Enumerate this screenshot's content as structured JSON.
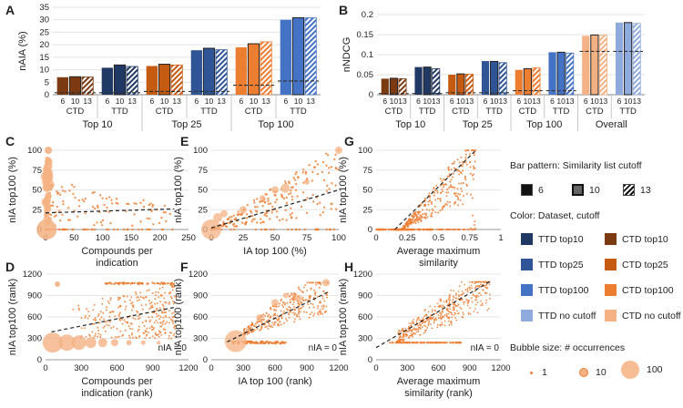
{
  "chart_data": [
    {
      "panel": "A",
      "type": "bar",
      "ylabel": "nAIA (%)",
      "ylim": [
        0,
        35
      ],
      "yticks": [
        0,
        5,
        10,
        15,
        20,
        25,
        30,
        35
      ],
      "subgroup_labels": [
        "6",
        "10",
        "13"
      ],
      "groups": [
        {
          "name": "Top 10",
          "bars": [
            {
              "dataset": "CTD",
              "color": "#7b3a12",
              "values": [
                7.0,
                7.2,
                7.1
              ],
              "baseline": 0.8
            },
            {
              "dataset": "TTD",
              "color": "#1f3864",
              "values": [
                10.8,
                11.9,
                11.3
              ],
              "baseline": 0.8
            }
          ]
        },
        {
          "name": "Top 25",
          "bars": [
            {
              "dataset": "CTD",
              "color": "#c55a11",
              "values": [
                11.5,
                12.2,
                11.9
              ],
              "baseline": 1.3
            },
            {
              "dataset": "TTD",
              "color": "#2f5597",
              "values": [
                17.8,
                18.6,
                18.0
              ],
              "baseline": 1.3
            }
          ]
        },
        {
          "name": "Top 100",
          "bars": [
            {
              "dataset": "CTD",
              "color": "#ed7d31",
              "values": [
                19.0,
                20.4,
                21.2
              ],
              "baseline": 3.8
            },
            {
              "dataset": "TTD",
              "color": "#4472c4",
              "values": [
                30.0,
                30.8,
                30.8
              ],
              "baseline": 5.5
            }
          ]
        }
      ]
    },
    {
      "panel": "B",
      "type": "bar",
      "ylabel": "nNDCG",
      "ylim": [
        0,
        0.2
      ],
      "yticks": [
        "0",
        "0.05",
        "0.1",
        "0.15",
        "0.2"
      ],
      "subgroup_labels": [
        "6",
        "10",
        "13"
      ],
      "groups": [
        {
          "name": "Top 10",
          "bars": [
            {
              "dataset": "CTD",
              "color": "#7b3a12",
              "values": [
                0.04,
                0.041,
                0.04
              ],
              "baseline": 0.003
            },
            {
              "dataset": "TTD",
              "color": "#1f3864",
              "values": [
                0.069,
                0.069,
                0.065
              ],
              "baseline": 0.003
            }
          ]
        },
        {
          "name": "Top 25",
          "bars": [
            {
              "dataset": "CTD",
              "color": "#c55a11",
              "values": [
                0.05,
                0.052,
                0.051
              ],
              "baseline": 0.005
            },
            {
              "dataset": "TTD",
              "color": "#2f5597",
              "values": [
                0.084,
                0.083,
                0.08
              ],
              "baseline": 0.005
            }
          ]
        },
        {
          "name": "Top 100",
          "bars": [
            {
              "dataset": "CTD",
              "color": "#ed7d31",
              "values": [
                0.062,
                0.065,
                0.067
              ],
              "baseline": 0.01
            },
            {
              "dataset": "TTD",
              "color": "#4472c4",
              "values": [
                0.106,
                0.106,
                0.104
              ],
              "baseline": 0.01
            }
          ]
        },
        {
          "name": "Overall",
          "bars": [
            {
              "dataset": "CTD",
              "color": "#f4b183",
              "values": [
                0.147,
                0.149,
                0.149
              ],
              "baseline": 0.108
            },
            {
              "dataset": "TTD",
              "color": "#8faadc",
              "values": [
                0.18,
                0.18,
                0.178
              ],
              "baseline": 0.108
            }
          ]
        }
      ]
    },
    {
      "panel": "C",
      "type": "scatter",
      "xlabel": "Compounds per indication",
      "ylabel": "nIA top100 (%)",
      "xlim": [
        0,
        250
      ],
      "ylim": [
        0,
        100
      ],
      "xticks": [
        0,
        50,
        100,
        150,
        200,
        250
      ],
      "yticks": [
        0,
        25,
        50,
        75,
        100
      ],
      "xtick_labels": [
        "0",
        "50",
        "100",
        "150",
        "200",
        "250"
      ],
      "ytick_labels": [
        "0",
        "25",
        "50",
        "75",
        "100"
      ],
      "trend": [
        [
          0,
          21
        ],
        [
          225,
          26
        ]
      ],
      "note": ""
    },
    {
      "panel": "E",
      "type": "scatter",
      "xlabel": "IA top 100 (%)",
      "ylabel": "nIA top100 (%)",
      "xlim": [
        0,
        100
      ],
      "ylim": [
        0,
        100
      ],
      "xticks": [
        0,
        25,
        50,
        75,
        100
      ],
      "yticks": [
        0,
        25,
        50,
        75,
        100
      ],
      "xtick_labels": [
        "0",
        "25",
        "50",
        "75",
        "100"
      ],
      "ytick_labels": [
        "0",
        "25",
        "50",
        "75",
        "100"
      ],
      "trend": [
        [
          0,
          2
        ],
        [
          100,
          50
        ]
      ],
      "note": ""
    },
    {
      "panel": "G",
      "type": "scatter",
      "xlabel": "Average maximum similarity",
      "ylabel": "nIA top100 (%)",
      "xlim": [
        0,
        1
      ],
      "ylim": [
        0,
        100
      ],
      "xticks": [
        0,
        0.25,
        0.5,
        0.75,
        1
      ],
      "yticks": [
        0,
        25,
        50,
        75,
        100
      ],
      "xtick_labels": [
        "0",
        "0.25",
        "0.5",
        "0.75",
        "1"
      ],
      "ytick_labels": [
        "0",
        "25",
        "50",
        "75",
        "100"
      ],
      "trend": [
        [
          0.15,
          0
        ],
        [
          0.8,
          100
        ]
      ],
      "note": ""
    },
    {
      "panel": "D",
      "type": "scatter",
      "xlabel": "Compounds per indication (rank)",
      "ylabel": "nIA top100 (rank)",
      "xlim": [
        0,
        1200
      ],
      "ylim": [
        0,
        1200
      ],
      "xticks": [
        0,
        300,
        600,
        900,
        1200
      ],
      "yticks": [
        0,
        300,
        600,
        900,
        1200
      ],
      "xtick_labels": [
        "0",
        "300",
        "600",
        "900",
        "1200"
      ],
      "ytick_labels": [
        "0",
        "300",
        "600",
        "900",
        "1200"
      ],
      "trend": [
        [
          50,
          390
        ],
        [
          1100,
          740
        ]
      ],
      "note": "nIA = 0"
    },
    {
      "panel": "F",
      "type": "scatter",
      "xlabel": "IA top 100 (rank)",
      "ylabel": "nIA top100 (rank)",
      "xlim": [
        0,
        1200
      ],
      "ylim": [
        0,
        1200
      ],
      "xticks": [
        0,
        300,
        600,
        900,
        1200
      ],
      "yticks": [
        0,
        300,
        600,
        900,
        1200
      ],
      "xtick_labels": [
        "0",
        "300",
        "600",
        "900",
        "1200"
      ],
      "ytick_labels": [
        "0",
        "300",
        "600",
        "900",
        "1200"
      ],
      "trend": [
        [
          150,
          250
        ],
        [
          1100,
          950
        ]
      ],
      "note": "nIA = 0"
    },
    {
      "panel": "H",
      "type": "scatter",
      "xlabel": "Average maximum similarity (rank)",
      "ylabel": "nIA top100 (rank)",
      "xlim": [
        0,
        1200
      ],
      "ylim": [
        0,
        1200
      ],
      "xticks": [
        0,
        300,
        600,
        900,
        1200
      ],
      "yticks": [
        0,
        300,
        600,
        900,
        1200
      ],
      "xtick_labels": [
        "0",
        "300",
        "600",
        "900",
        "1200"
      ],
      "ytick_labels": [
        "0",
        "300",
        "600",
        "900",
        "1200"
      ],
      "trend": [
        [
          0,
          170
        ],
        [
          1100,
          1100
        ]
      ],
      "note": "nIA = 0"
    }
  ],
  "legend": {
    "pattern_title": "Bar pattern: Similarity list cutoff",
    "pattern_items": [
      {
        "label": "6",
        "pattern": "solid"
      },
      {
        "label": "10",
        "pattern": "outlined"
      },
      {
        "label": "13",
        "pattern": "hatched"
      }
    ],
    "color_title": "Color: Dataset, cutoff",
    "color_items": [
      {
        "label": "TTD top10",
        "color": "#1f3864"
      },
      {
        "label": "CTD top10",
        "color": "#7b3a12"
      },
      {
        "label": "TTD top25",
        "color": "#2f5597"
      },
      {
        "label": "CTD top25",
        "color": "#c55a11"
      },
      {
        "label": "TTD top100",
        "color": "#4472c4"
      },
      {
        "label": "CTD top100",
        "color": "#ed7d31"
      },
      {
        "label": "TTD no cutoff",
        "color": "#8faadc"
      },
      {
        "label": "CTD no cutoff",
        "color": "#f4b183"
      }
    ],
    "bubble_title": "Bubble size: # occurrences",
    "bubble_items": [
      {
        "label": "1",
        "value": 1
      },
      {
        "label": "10",
        "value": 10
      },
      {
        "label": "100",
        "value": 100
      }
    ]
  },
  "colors": {
    "scatter": "#ed7d31",
    "bubble": "#f4b183",
    "trend": "#222222",
    "baseline": "#333333"
  }
}
